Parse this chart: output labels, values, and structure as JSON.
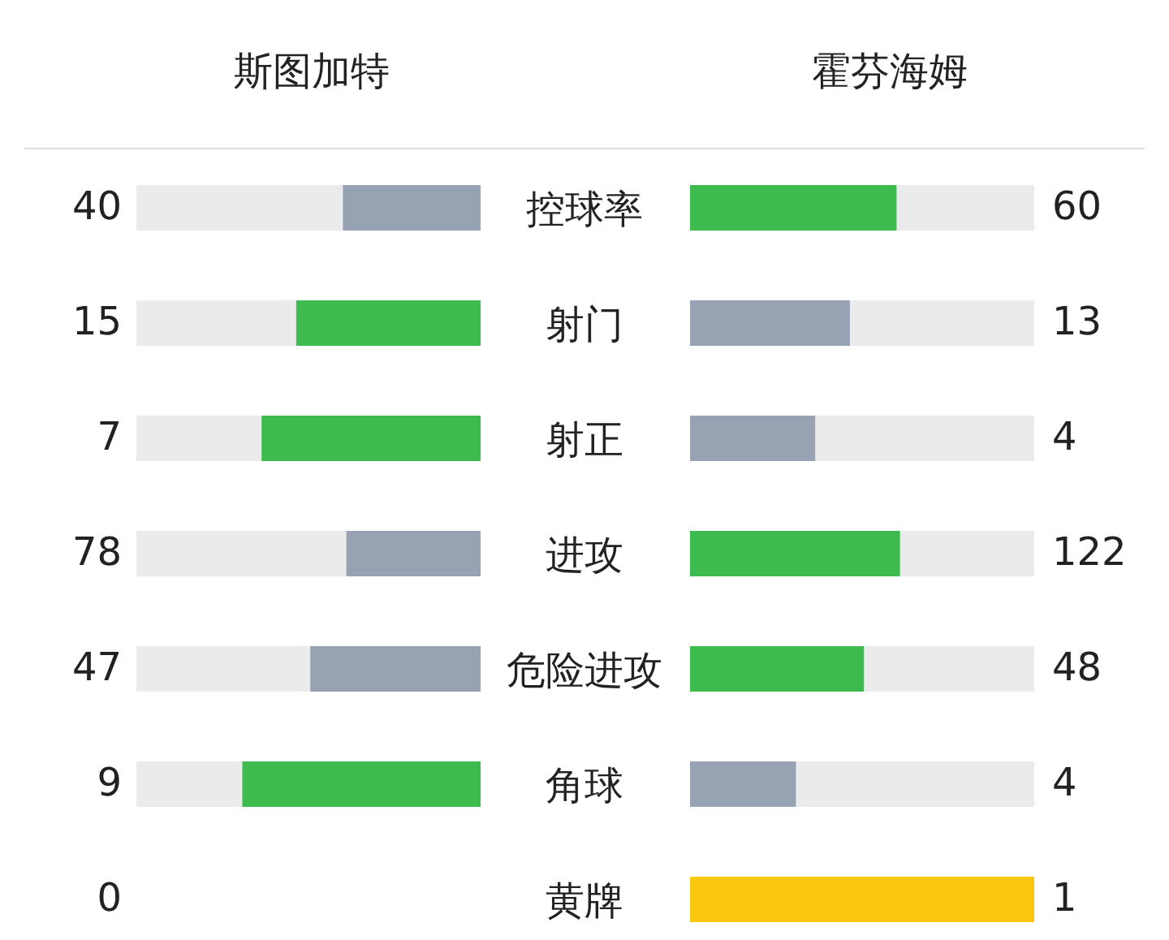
{
  "chart_data": {
    "type": "other",
    "categories": [
      "控球率",
      "射门",
      "射正",
      "进攻",
      "危险进攻",
      "角球",
      "黄牌"
    ],
    "series": [
      {
        "name": "斯图加特",
        "values": [
          40,
          15,
          7,
          78,
          47,
          9,
          0
        ],
        "colors": [
          "#97a2b3",
          "#3dbb4e",
          "#3dbb4e",
          "#97a2b3",
          "#97a2b3",
          "#3dbb4e",
          "#97a2b3"
        ]
      },
      {
        "name": "霍芬海姆",
        "values": [
          60,
          13,
          4,
          122,
          48,
          4,
          1
        ],
        "colors": [
          "#3dbb4e",
          "#97a2b3",
          "#97a2b3",
          "#3dbb4e",
          "#3dbb4e",
          "#97a2b3",
          "#f9c80e"
        ]
      }
    ],
    "data_labels": true
  }
}
